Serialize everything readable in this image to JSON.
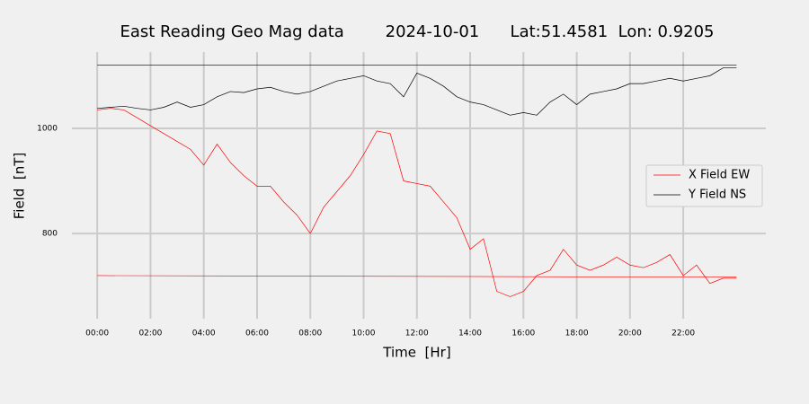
{
  "chart_data": {
    "type": "line",
    "title": "East Reading Geo Mag data        2024-10-01      Lat:51.4581  Lon: 0.9205",
    "xlabel": "Time  [Hr]",
    "ylabel": "Field  [nT]",
    "x": [
      0,
      0.5,
      1,
      1.5,
      2,
      2.5,
      3,
      3.5,
      4,
      4.5,
      5,
      5.5,
      6,
      6.5,
      7,
      7.5,
      8,
      8.5,
      9,
      9.5,
      10,
      10.5,
      11,
      11.5,
      12,
      12.5,
      13,
      13.5,
      14,
      14.5,
      15,
      15.5,
      16,
      16.5,
      17,
      17.5,
      18,
      18.5,
      19,
      19.5,
      20,
      20.5,
      21,
      21.5,
      22,
      22.5,
      23,
      23.5,
      24
    ],
    "series": [
      {
        "name": "X Field EW",
        "color": "#ff0000",
        "values": [
          1035,
          1038,
          1035,
          1020,
          1005,
          990,
          975,
          960,
          930,
          970,
          935,
          910,
          890,
          890,
          860,
          835,
          800,
          850,
          880,
          910,
          950,
          995,
          990,
          900,
          895,
          890,
          860,
          830,
          770,
          790,
          690,
          680,
          690,
          720,
          730,
          770,
          740,
          730,
          740,
          755,
          740,
          735,
          745,
          760,
          720,
          740,
          705,
          715,
          715
        ]
      },
      {
        "name": "Y Field NS",
        "color": "#000000",
        "values": [
          1038,
          1040,
          1042,
          1038,
          1035,
          1040,
          1050,
          1040,
          1045,
          1060,
          1070,
          1068,
          1075,
          1078,
          1070,
          1065,
          1070,
          1080,
          1090,
          1095,
          1100,
          1090,
          1085,
          1060,
          1105,
          1095,
          1080,
          1060,
          1050,
          1045,
          1035,
          1025,
          1030,
          1025,
          1050,
          1065,
          1045,
          1065,
          1070,
          1075,
          1085,
          1085,
          1090,
          1095,
          1090,
          1095,
          1100,
          1115,
          1115
        ]
      }
    ],
    "reference_lines": [
      {
        "color": "#000000",
        "x": [
          0,
          24
        ],
        "values": [
          1120,
          1120
        ]
      },
      {
        "color": "#ff0000",
        "x": [
          0,
          24
        ],
        "values": [
          720,
          717
        ]
      }
    ],
    "xlim": [
      -0.95,
      25.1
    ],
    "ylim": [
      638,
      1145
    ],
    "xticks": [
      {
        "value": 0,
        "label": "00:00"
      },
      {
        "value": 2,
        "label": "02:00"
      },
      {
        "value": 4,
        "label": "04:00"
      },
      {
        "value": 6,
        "label": "06:00"
      },
      {
        "value": 8,
        "label": "08:00"
      },
      {
        "value": 10,
        "label": "10:00"
      },
      {
        "value": 12,
        "label": "12:00"
      },
      {
        "value": 14,
        "label": "14:00"
      },
      {
        "value": 16,
        "label": "16:00"
      },
      {
        "value": 18,
        "label": "18:00"
      },
      {
        "value": 20,
        "label": "20:00"
      },
      {
        "value": 22,
        "label": "22:00"
      }
    ],
    "yticks": [
      800,
      1000
    ],
    "grid": true,
    "legend": "right"
  }
}
